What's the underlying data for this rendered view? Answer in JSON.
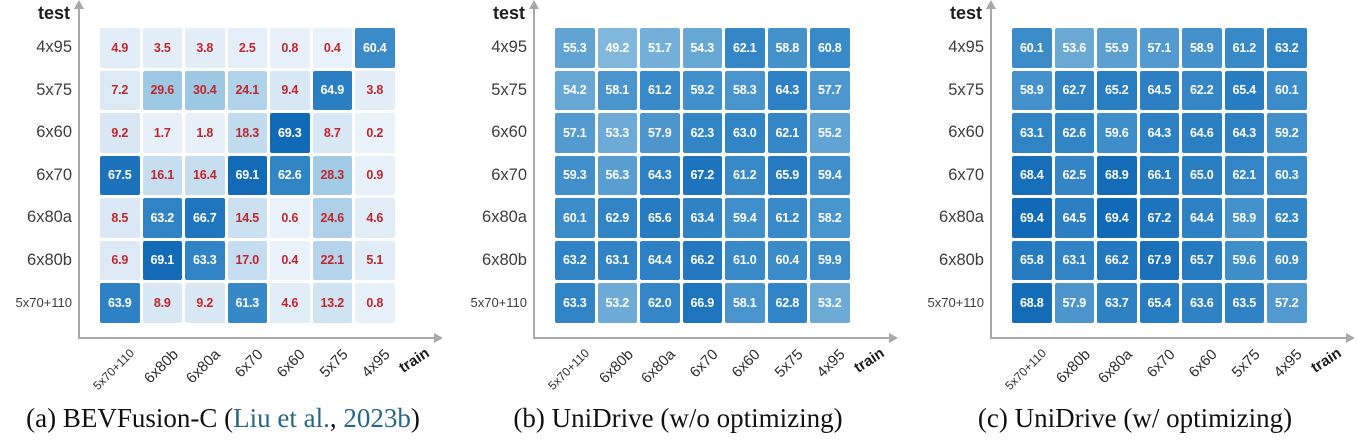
{
  "figure": {
    "y_axis_label": "test",
    "x_axis_label": "train",
    "axis_color": "#a8a8a8",
    "tick_label_color": "#3d3d3d"
  },
  "colormap": {
    "stops": [
      [
        0,
        "#eaf2fa"
      ],
      [
        10,
        "#d7e7f4"
      ],
      [
        20,
        "#bdd9ee"
      ],
      [
        30,
        "#9dc8e4"
      ],
      [
        50,
        "#7fb6db"
      ],
      [
        55,
        "#63a4d3"
      ],
      [
        60,
        "#3b8cc9"
      ],
      [
        65,
        "#2a7ec2"
      ],
      [
        70,
        "#0e67b5"
      ]
    ]
  },
  "panels": [
    {
      "id": "a",
      "cell_text": {
        "mode": "threshold",
        "threshold": 60,
        "low_color": "#c1262d",
        "high_color": "#ffffff"
      },
      "caption_parts": [
        {
          "text": "(a) BEVFusion-C (",
          "color": "#111111"
        },
        {
          "text": "Liu et al.",
          "color": "#266784"
        },
        {
          "text": ", ",
          "color": "#111111"
        },
        {
          "text": "2023b",
          "color": "#266784"
        },
        {
          "text": ")",
          "color": "#111111"
        }
      ]
    },
    {
      "id": "b",
      "cell_text": {
        "mode": "fixed",
        "color": "#ffffff"
      },
      "caption_parts": [
        {
          "text": "(b) UniDrive (w/o optimizing)",
          "color": "#111111"
        }
      ]
    },
    {
      "id": "c",
      "cell_text": {
        "mode": "fixed",
        "color": "#ffffff"
      },
      "caption_parts": [
        {
          "text": "(c) UniDrive (w/ optimizing)",
          "color": "#111111"
        }
      ]
    }
  ],
  "chart_data": [
    {
      "type": "heatmap",
      "title": "(a) BEVFusion-C (Liu et al., 2023b)",
      "xlabel": "train",
      "ylabel": "test",
      "x_categories": [
        "5x70+110",
        "6x80b",
        "6x80a",
        "6x70",
        "6x60",
        "5x75",
        "4x95"
      ],
      "y_categories": [
        "4x95",
        "5x75",
        "6x60",
        "6x70",
        "6x80a",
        "6x80b",
        "5x70+110"
      ],
      "values": [
        [
          4.9,
          3.5,
          3.8,
          2.5,
          0.8,
          0.4,
          60.4
        ],
        [
          7.2,
          29.6,
          30.4,
          24.1,
          9.4,
          64.9,
          3.8
        ],
        [
          9.2,
          1.7,
          1.8,
          18.3,
          69.3,
          8.7,
          0.2
        ],
        [
          67.5,
          16.1,
          16.4,
          69.1,
          62.6,
          28.3,
          0.9
        ],
        [
          8.5,
          63.2,
          66.7,
          14.5,
          0.6,
          24.6,
          4.6
        ],
        [
          6.9,
          69.1,
          63.3,
          17.0,
          0.4,
          22.1,
          5.1
        ],
        [
          63.9,
          8.9,
          9.2,
          61.3,
          4.6,
          13.2,
          0.8
        ]
      ]
    },
    {
      "type": "heatmap",
      "title": "(b) UniDrive (w/o optimizing)",
      "xlabel": "train",
      "ylabel": "test",
      "x_categories": [
        "5x70+110",
        "6x80b",
        "6x80a",
        "6x70",
        "6x60",
        "5x75",
        "4x95"
      ],
      "y_categories": [
        "4x95",
        "5x75",
        "6x60",
        "6x70",
        "6x80a",
        "6x80b",
        "5x70+110"
      ],
      "values": [
        [
          55.3,
          49.2,
          51.7,
          54.3,
          62.1,
          58.8,
          60.8
        ],
        [
          54.2,
          58.1,
          61.2,
          59.2,
          58.3,
          64.3,
          57.7
        ],
        [
          57.1,
          53.3,
          57.9,
          62.3,
          63.0,
          62.1,
          55.2
        ],
        [
          59.3,
          56.3,
          64.3,
          67.2,
          61.2,
          65.9,
          59.4
        ],
        [
          60.1,
          62.9,
          65.6,
          63.4,
          59.4,
          61.2,
          58.2
        ],
        [
          63.2,
          63.1,
          64.4,
          66.2,
          61.0,
          60.4,
          59.9
        ],
        [
          63.3,
          53.2,
          62.0,
          66.9,
          58.1,
          62.8,
          53.2
        ]
      ]
    },
    {
      "type": "heatmap",
      "title": "(c) UniDrive (w/ optimizing)",
      "xlabel": "train",
      "ylabel": "test",
      "x_categories": [
        "5x70+110",
        "6x80b",
        "6x80a",
        "6x70",
        "6x60",
        "5x75",
        "4x95"
      ],
      "y_categories": [
        "4x95",
        "5x75",
        "6x60",
        "6x70",
        "6x80a",
        "6x80b",
        "5x70+110"
      ],
      "values": [
        [
          60.1,
          53.6,
          55.9,
          57.1,
          58.9,
          61.2,
          63.2
        ],
        [
          58.9,
          62.7,
          65.2,
          64.5,
          62.2,
          65.4,
          60.1
        ],
        [
          63.1,
          62.6,
          59.6,
          64.3,
          64.6,
          64.3,
          59.2
        ],
        [
          68.4,
          62.5,
          68.9,
          66.1,
          65.0,
          62.1,
          60.3
        ],
        [
          69.4,
          64.5,
          69.4,
          67.2,
          64.4,
          58.9,
          62.3
        ],
        [
          65.8,
          63.1,
          66.2,
          67.9,
          65.7,
          59.6,
          60.9
        ],
        [
          68.8,
          57.9,
          63.7,
          65.4,
          63.6,
          63.5,
          57.2
        ]
      ]
    }
  ]
}
